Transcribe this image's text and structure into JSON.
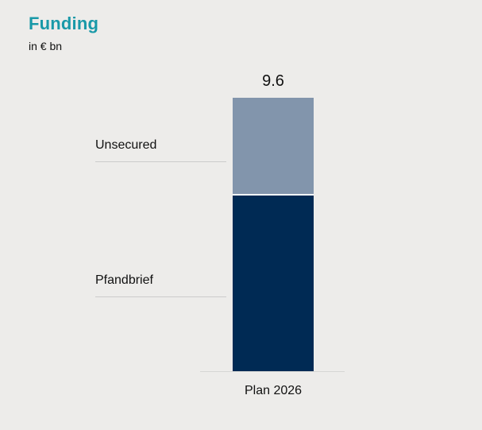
{
  "colors": {
    "background": "#edecea",
    "title": "#1999a8",
    "text": "#111111",
    "leader_line": "#cccccb",
    "axis_line": "#d6d6d4",
    "segment_divider": "#ffffff"
  },
  "header": {
    "title": "Funding",
    "subtitle": "in € bn"
  },
  "chart_data": {
    "type": "bar",
    "stacked": true,
    "title": "Funding",
    "ylabel": "in € bn",
    "categories": [
      "Plan 2026"
    ],
    "series": [
      {
        "name": "Pfandbrief",
        "values": [
          6.2
        ],
        "color": "#002a54"
      },
      {
        "name": "Unsecured",
        "values": [
          3.4
        ],
        "color": "#8295ac"
      }
    ],
    "totals": [
      9.6
    ],
    "total_labels": [
      "9.6"
    ],
    "ylim": [
      0,
      9.6
    ],
    "grid": false,
    "legend_position": "left-of-bar-labels"
  }
}
